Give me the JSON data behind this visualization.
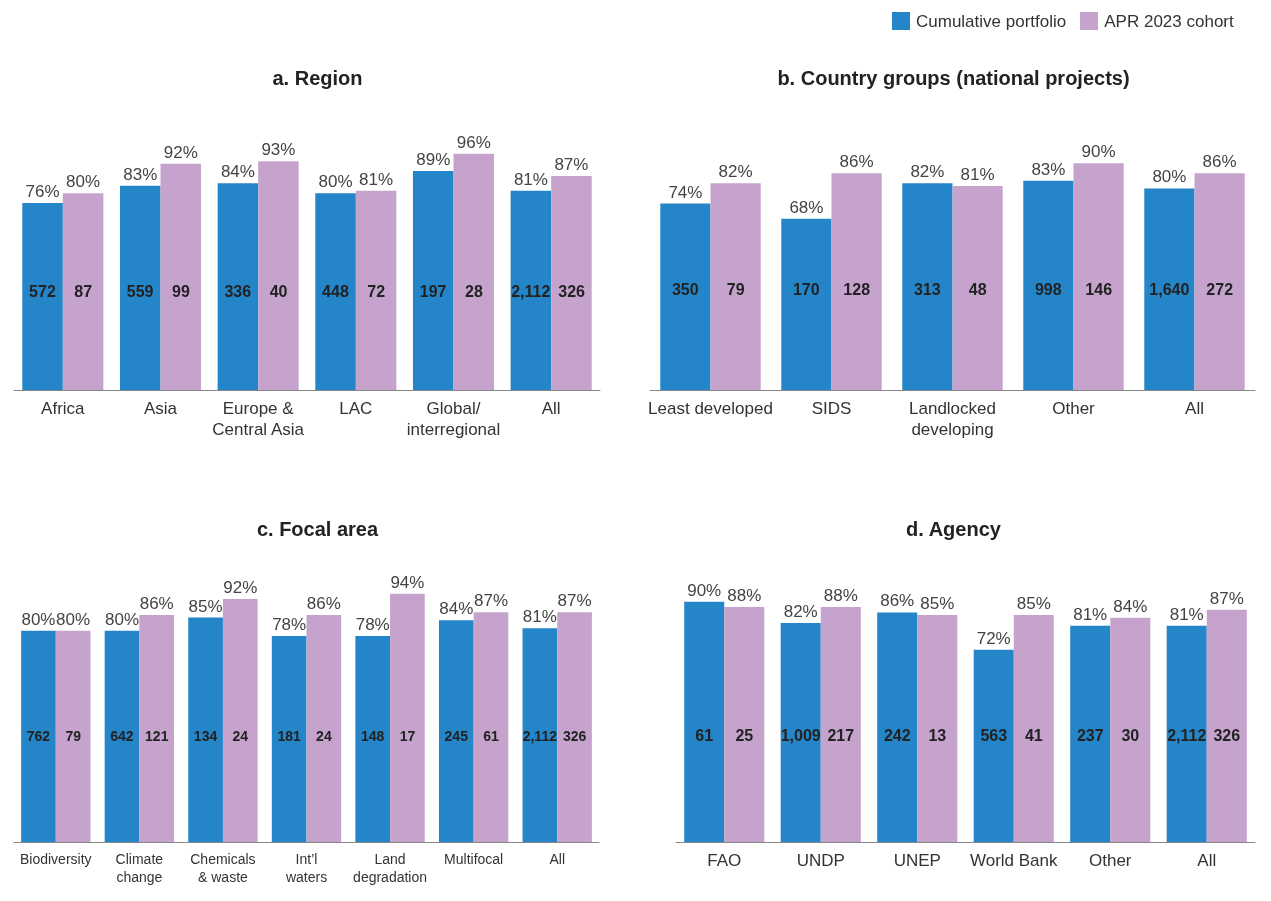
{
  "chart_data": [
    {
      "type": "bar",
      "title": "a. Region",
      "categories": [
        "Africa",
        "Asia",
        "Europe &\nCentral Asia",
        "LAC",
        "Global/\ninterregional",
        "All"
      ],
      "tick_labels": "x",
      "legend": "top right",
      "series": [
        {
          "name": "Cumulative portfolio",
          "color": "#2485c8",
          "values": [
            76,
            83,
            84,
            80,
            89,
            81
          ],
          "value_labels": [
            "76%",
            "83%",
            "84%",
            "80%",
            "89%",
            "81%"
          ]
        },
        {
          "name": "APR 2023 cohort",
          "color": "#c5a3cd",
          "values": [
            80,
            92,
            93,
            81,
            96,
            87
          ],
          "value_labels": [
            "80%",
            "92%",
            "93%",
            "81%",
            "96%",
            "87%"
          ]
        }
      ],
      "annotations": [
        "572",
        "87",
        "559",
        "99",
        "336",
        "40",
        "448",
        "72",
        "197",
        "28",
        "2,112",
        "326"
      ]
    },
    {
      "type": "bar",
      "title": "b. Country groups (national projects)",
      "categories": [
        "Least developed",
        "SIDS",
        "Landlocked\ndeveloping",
        "Other",
        "All"
      ],
      "tick_labels": "x",
      "series": [
        {
          "color": "#2485c8",
          "values": [
            74,
            68,
            82,
            83,
            80
          ],
          "value_labels": [
            "74%",
            "68%",
            "82%",
            "83%",
            "80%"
          ]
        },
        {
          "color": "#c5a3cd",
          "values": [
            82,
            86,
            81,
            90,
            86
          ],
          "value_labels": [
            "82%",
            "86%",
            "81%",
            "90%",
            "86%"
          ]
        }
      ],
      "annotations": [
        "350",
        "79",
        "170",
        "128",
        "313",
        "48",
        "998",
        "146",
        "1,640",
        "272"
      ]
    },
    {
      "type": "bar",
      "title": "c. Focal area",
      "categories": [
        "Biodiversity",
        "Climate\nchange",
        "Chemicals\n& waste",
        "Int’l\nwaters",
        "Land\ndegradation",
        "Multifocal",
        "All"
      ],
      "tick_labels": "x",
      "series": [
        {
          "color": "#2485c8",
          "values": [
            80,
            80,
            85,
            78,
            78,
            84,
            81
          ],
          "value_labels": [
            "80%",
            "80%",
            "85%",
            "78%",
            "78%",
            "84%",
            "81%"
          ]
        },
        {
          "color": "#c5a3cd",
          "values": [
            80,
            86,
            92,
            86,
            94,
            87,
            87
          ],
          "value_labels": [
            "80%",
            "86%",
            "92%",
            "86%",
            "94%",
            "87%",
            "87%"
          ]
        }
      ],
      "annotations": [
        "762",
        "79",
        "642",
        "121",
        "134",
        "24",
        "181",
        "24",
        "148",
        "17",
        "245",
        "61",
        "2,112",
        "326"
      ]
    },
    {
      "type": "bar",
      "title": "d. Agency",
      "categories": [
        "FAO",
        "UNDP",
        "UNEP",
        "World Bank",
        "Other",
        "All"
      ],
      "tick_labels": "x",
      "series": [
        {
          "color": "#2485c8",
          "values": [
            90,
            82,
            86,
            72,
            81,
            81
          ],
          "value_labels": [
            "90%",
            "82%",
            "86%",
            "72%",
            "81%",
            "81%"
          ]
        },
        {
          "color": "#c5a3cd",
          "values": [
            88,
            88,
            85,
            85,
            84,
            87
          ],
          "value_labels": [
            "88%",
            "88%",
            "85%",
            "85%",
            "84%",
            "87%"
          ]
        }
      ],
      "annotations": [
        "61",
        "25",
        "1,009",
        "217",
        "242",
        "13",
        "563",
        "41",
        "237",
        "30",
        "2,112",
        "326"
      ]
    }
  ]
}
